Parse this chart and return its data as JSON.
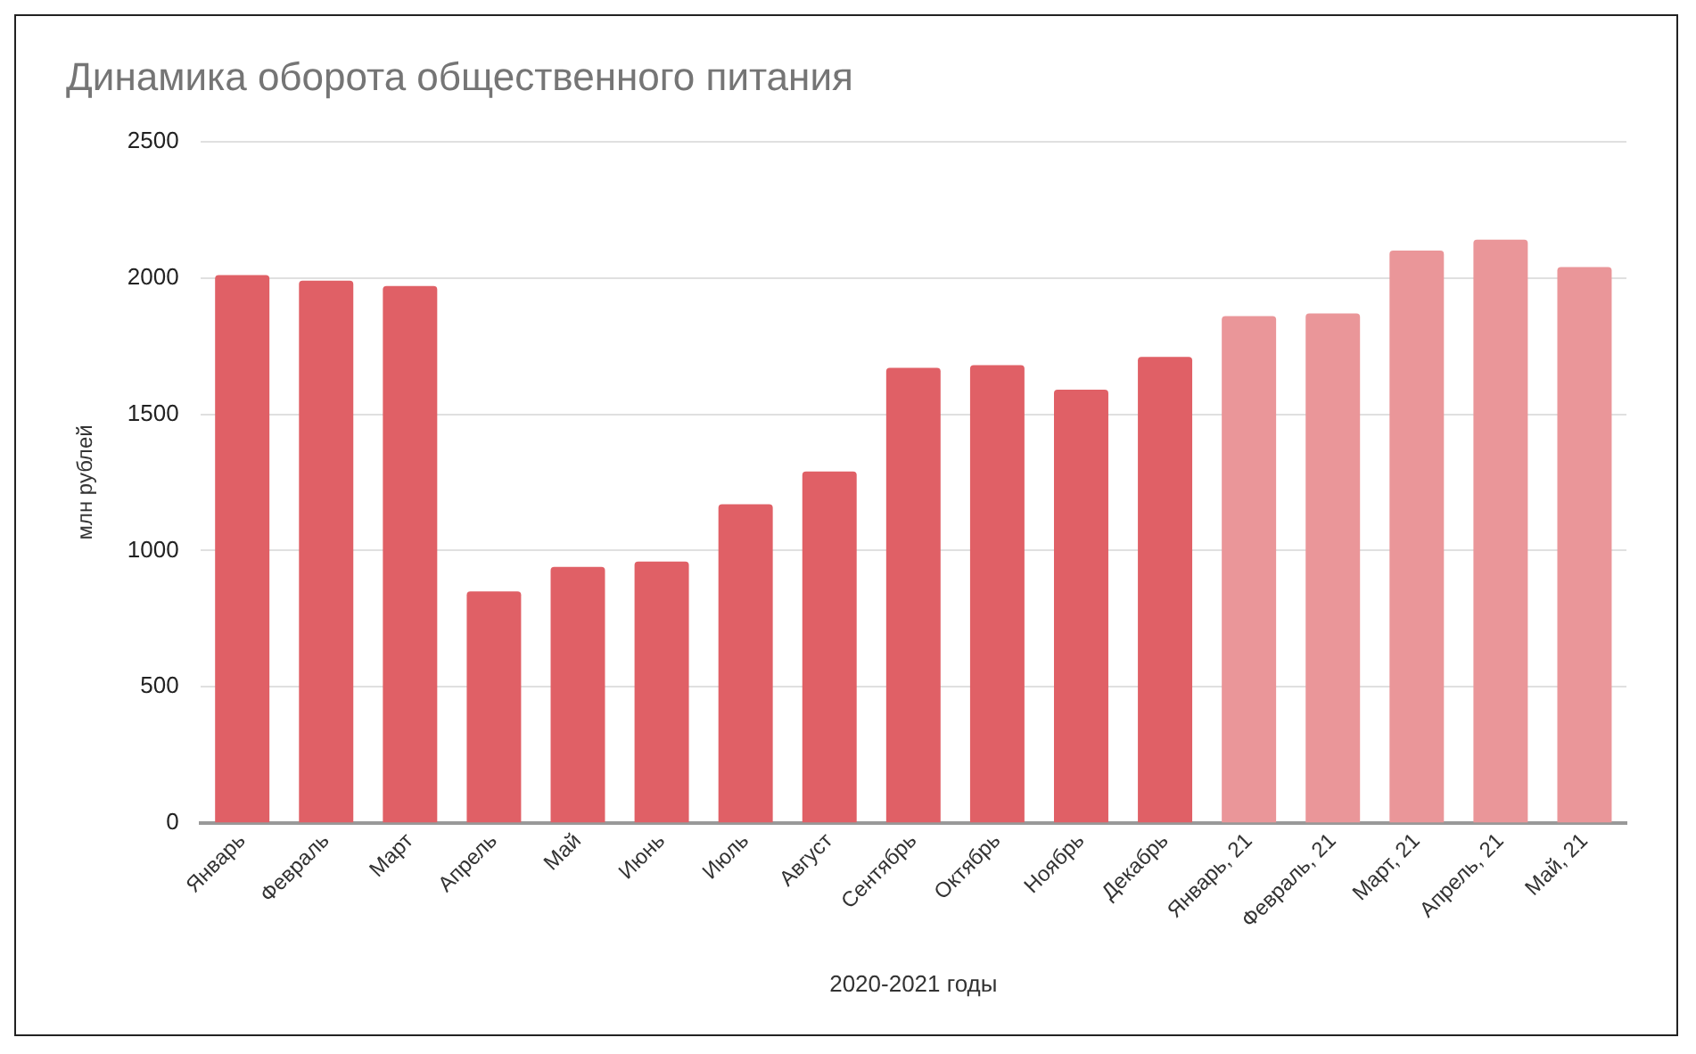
{
  "chart_data": {
    "type": "bar",
    "title": "Динамика оборота общественного питания",
    "xlabel": "2020-2021 годы",
    "ylabel": "млн рублей",
    "categories": [
      "Январь",
      "Февраль",
      "Март",
      "Апрель",
      "Май",
      "Июнь",
      "Июль",
      "Август",
      "Сентябрь",
      "Октябрь",
      "Ноябрь",
      "Декабрь",
      "Январь, 21",
      "Февраль, 21",
      "Март, 21",
      "Апрель, 21",
      "Май, 21"
    ],
    "values": [
      2010,
      1990,
      1970,
      850,
      940,
      960,
      1170,
      1290,
      1670,
      1680,
      1590,
      1710,
      1860,
      1870,
      2100,
      2140,
      2040
    ],
    "colors": [
      "#e06066",
      "#e06066",
      "#e06066",
      "#e06066",
      "#e06066",
      "#e06066",
      "#e06066",
      "#e06066",
      "#e06066",
      "#e06066",
      "#e06066",
      "#e06066",
      "#ea9699",
      "#ea9699",
      "#ea9699",
      "#ea9699",
      "#ea9699"
    ],
    "ylim": [
      0,
      2500
    ],
    "yticks": [
      0,
      500,
      1000,
      1500,
      2000,
      2500
    ],
    "grid": "y",
    "legend": false
  }
}
